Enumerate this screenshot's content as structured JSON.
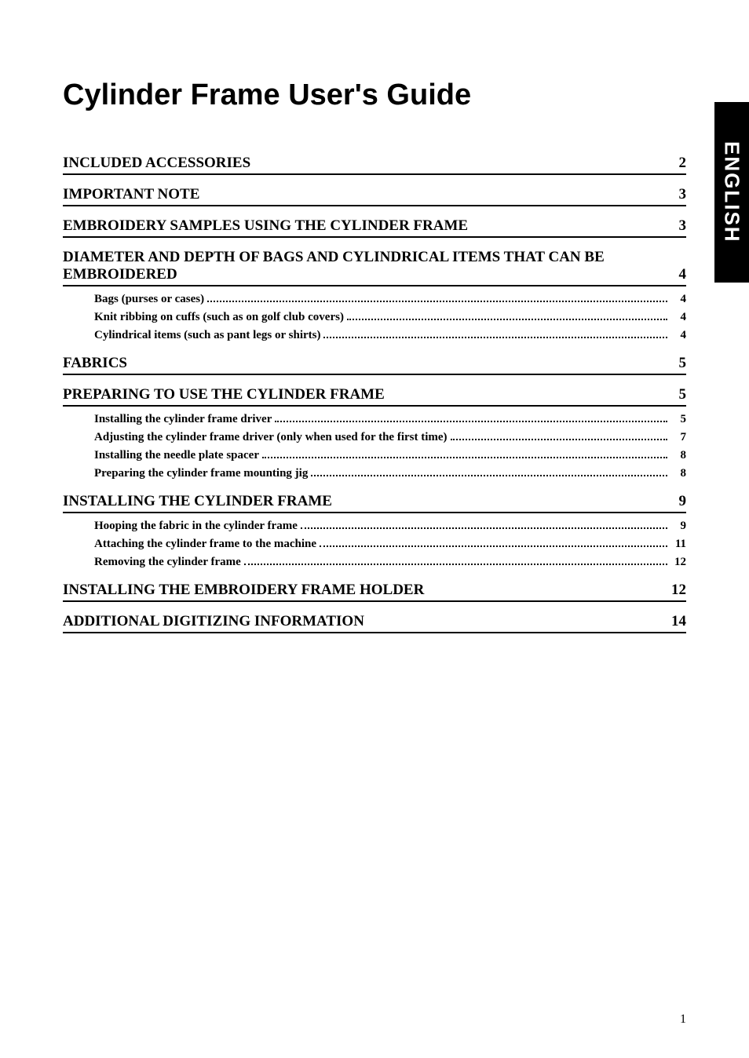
{
  "title": "Cylinder Frame User's Guide",
  "side_tab": "ENGLISH",
  "page_number": "1",
  "colors": {
    "background": "#ffffff",
    "text": "#000000",
    "tab_bg": "#000000",
    "tab_text": "#ffffff",
    "rule": "#000000"
  },
  "typography": {
    "title_fontsize": 38,
    "title_family": "Arial",
    "title_weight": "bold",
    "section_fontsize": 19,
    "section_weight": "bold",
    "sub_fontsize": 15,
    "sub_weight": "bold",
    "tab_fontsize": 26,
    "pagenum_fontsize": 16,
    "body_family": "Times New Roman"
  },
  "toc": {
    "sections": [
      {
        "title": "INCLUDED ACCESSORIES",
        "page": "2",
        "subs": []
      },
      {
        "title": "IMPORTANT NOTE",
        "page": "3",
        "subs": []
      },
      {
        "title": "EMBROIDERY SAMPLES USING THE CYLINDER FRAME",
        "page": "3",
        "subs": []
      },
      {
        "title": "DIAMETER AND DEPTH OF BAGS AND CYLINDRICAL ITEMS THAT CAN BE EMBROIDERED",
        "page": "4",
        "subs": [
          {
            "title": "Bags (purses or cases)",
            "page": "4"
          },
          {
            "title": "Knit ribbing on cuffs (such as on golf club covers)",
            "page": "4"
          },
          {
            "title": "Cylindrical items (such as pant legs or shirts)",
            "page": "4"
          }
        ]
      },
      {
        "title": "FABRICS",
        "page": "5",
        "subs": []
      },
      {
        "title": "PREPARING TO USE THE CYLINDER FRAME",
        "page": "5",
        "subs": [
          {
            "title": "Installing the cylinder frame driver",
            "page": "5"
          },
          {
            "title": "Adjusting the cylinder frame driver (only when used for the first time)",
            "page": "7"
          },
          {
            "title": "Installing the needle plate spacer",
            "page": "8"
          },
          {
            "title": "Preparing the cylinder frame mounting jig",
            "page": "8"
          }
        ]
      },
      {
        "title": "INSTALLING THE CYLINDER FRAME",
        "page": "9",
        "subs": [
          {
            "title": "Hooping the fabric in the cylinder frame",
            "page": "9"
          },
          {
            "title": "Attaching the cylinder frame to the machine",
            "page": "11"
          },
          {
            "title": "Removing the cylinder frame",
            "page": "12"
          }
        ]
      },
      {
        "title": "INSTALLING THE EMBROIDERY FRAME HOLDER",
        "page": "12",
        "subs": []
      },
      {
        "title": "ADDITIONAL DIGITIZING INFORMATION",
        "page": "14",
        "subs": []
      }
    ]
  }
}
